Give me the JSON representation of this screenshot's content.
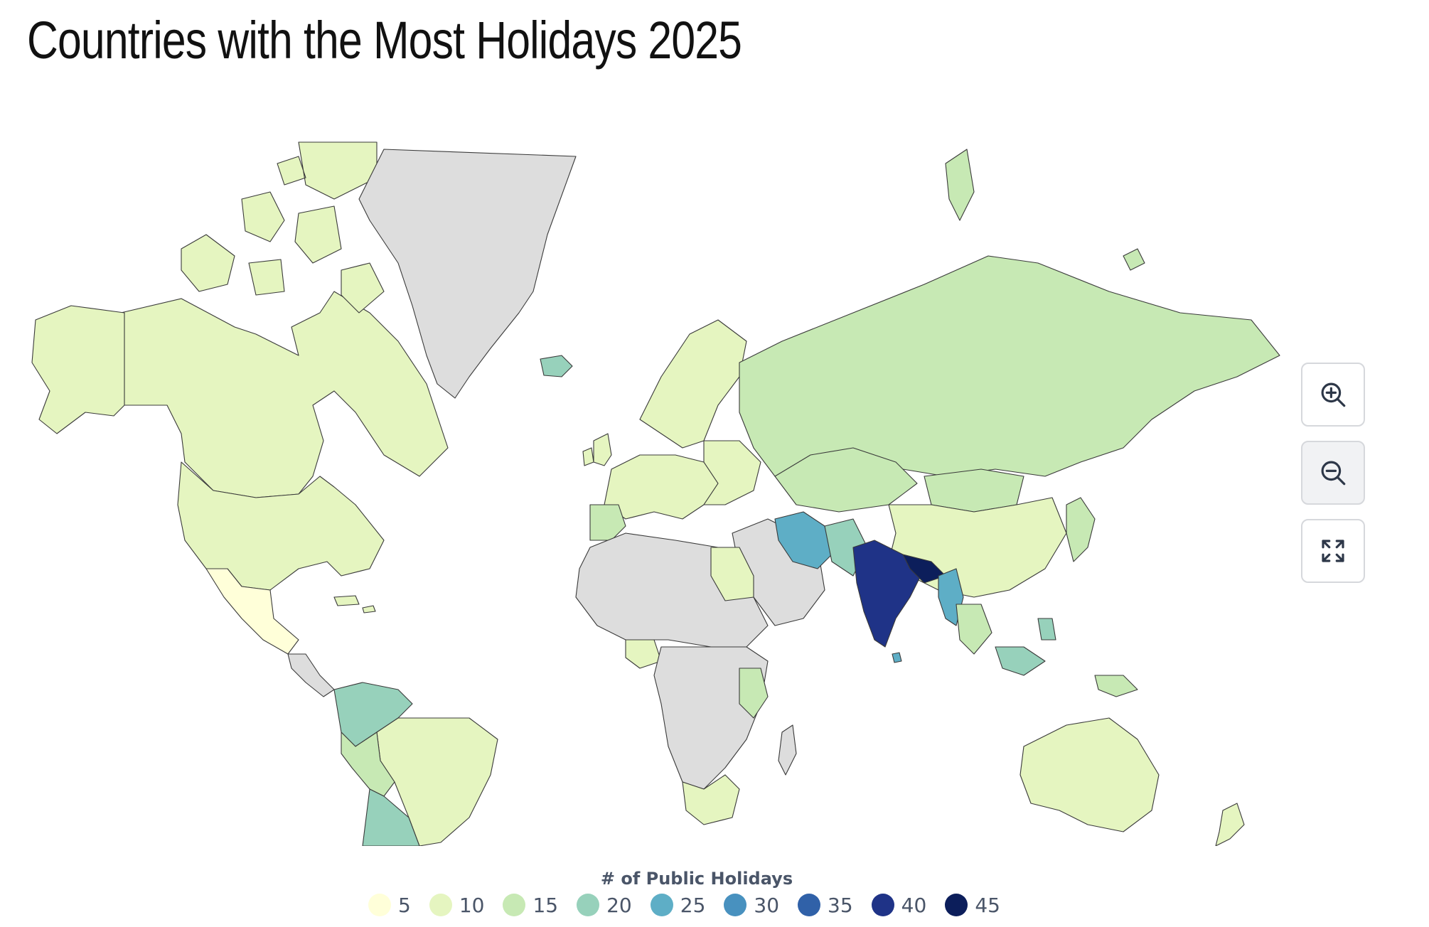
{
  "title": "Countries with the Most Holidays 2025",
  "legend": {
    "title": "# of Public Holidays",
    "items": [
      {
        "label": "5",
        "color": "#ffffd9"
      },
      {
        "label": "10",
        "color": "#e5f5c0"
      },
      {
        "label": "15",
        "color": "#c7e9b4"
      },
      {
        "label": "20",
        "color": "#97d1bb"
      },
      {
        "label": "25",
        "color": "#5eaec6"
      },
      {
        "label": "30",
        "color": "#4891bf"
      },
      {
        "label": "35",
        "color": "#3061a8"
      },
      {
        "label": "40",
        "color": "#1f3387"
      },
      {
        "label": "45",
        "color": "#0c1e5b"
      }
    ]
  },
  "colors": {
    "no_data": "#dddddd",
    "c5": "#ffffd9",
    "c10": "#e5f5c0",
    "c15": "#c7e9b4",
    "c20": "#97d1bb",
    "c25": "#5eaec6",
    "c30": "#4891bf",
    "c35": "#3061a8",
    "c40": "#1f3387",
    "c45": "#0c1e5b"
  },
  "controls": {
    "zoom_in_icon": "zoom-in-icon",
    "zoom_out_icon": "zoom-out-icon",
    "fullscreen_icon": "fullscreen-icon"
  }
}
